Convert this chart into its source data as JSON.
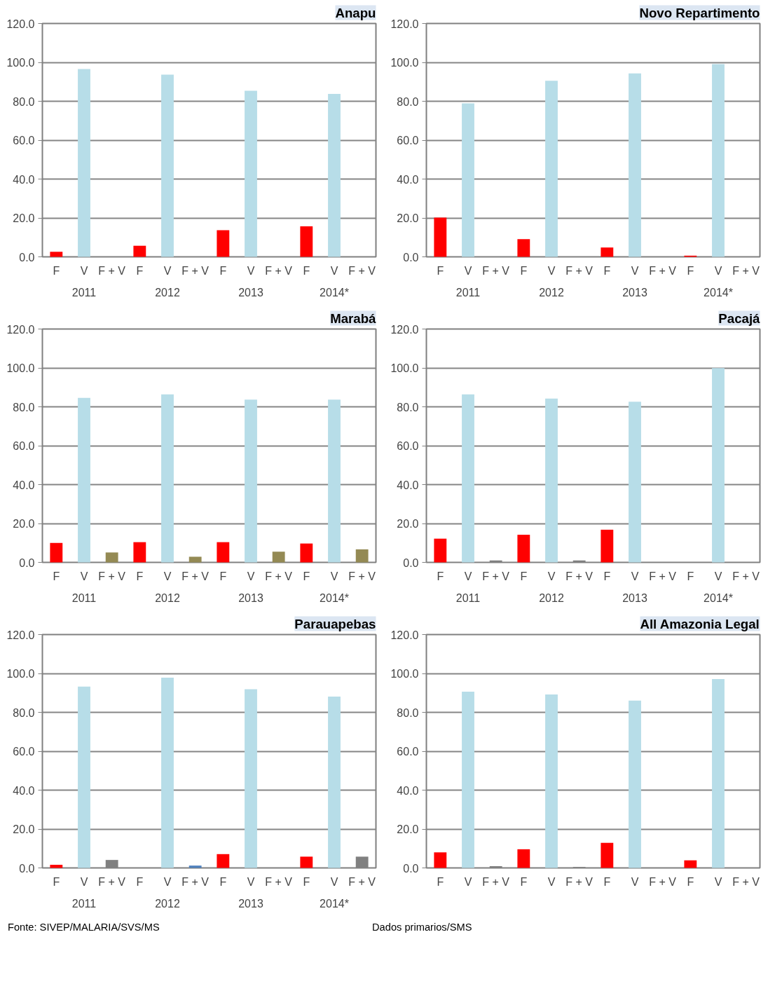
{
  "chart_data": [
    {
      "type": "bar",
      "title": "Anapu",
      "categories": [
        "F",
        "V",
        "F + V",
        "F",
        "V",
        "F + V",
        "F",
        "V",
        "F + V",
        "F",
        "V",
        "F + V"
      ],
      "values": [
        2.6,
        96.6,
        null,
        5.7,
        93.7,
        null,
        13.7,
        85.4,
        null,
        15.7,
        83.8,
        null
      ],
      "colors": [
        "#ff0000",
        "#b7dde8",
        "#808080",
        "#ff0000",
        "#b7dde8",
        "#808080",
        "#ff0000",
        "#b7dde8",
        "#808080",
        "#ff0000",
        "#b7dde8",
        "#808080"
      ],
      "annotations": [
        "2011",
        "2012",
        "2013",
        "2014*"
      ],
      "ylim": [
        0,
        120
      ],
      "yticks": [
        {
          "value": 0,
          "label": "0.0"
        },
        {
          "value": 20,
          "label": "20.0"
        },
        {
          "value": 40,
          "label": "40.0"
        },
        {
          "value": 60,
          "label": "60.0"
        },
        {
          "value": 80,
          "label": "80.0"
        },
        {
          "value": 100,
          "label": "100.0"
        },
        {
          "value": 120,
          "label": "120.0"
        }
      ],
      "grid": "y"
    },
    {
      "type": "bar",
      "title": "Novo Repartimento",
      "categories": [
        "F",
        "V",
        "F + V",
        "F",
        "V",
        "F + V",
        "F",
        "V",
        "F + V",
        "F",
        "V",
        "F + V"
      ],
      "values": [
        20.2,
        78.9,
        null,
        9.1,
        90.5,
        null,
        4.8,
        94.3,
        null,
        0.6,
        99.1,
        null
      ],
      "colors": [
        "#ff0000",
        "#b7dde8",
        "#808080",
        "#ff0000",
        "#b7dde8",
        "#808080",
        "#ff0000",
        "#b7dde8",
        "#808080",
        "#ff0000",
        "#b7dde8",
        "#808080"
      ],
      "annotations": [
        "2011",
        "2012",
        "2013",
        "2014*"
      ],
      "ylim": [
        0,
        120
      ],
      "yticks": [
        {
          "value": 0,
          "label": "0.0"
        },
        {
          "value": 20,
          "label": "20.0"
        },
        {
          "value": 40,
          "label": "40.0"
        },
        {
          "value": 60,
          "label": "60.0"
        },
        {
          "value": 80,
          "label": "80.0"
        },
        {
          "value": 100,
          "label": "100.0"
        },
        {
          "value": 120,
          "label": "120.0"
        }
      ],
      "grid": "y"
    },
    {
      "type": "bar",
      "title": "Marabá",
      "categories": [
        "F",
        "V",
        "F + V",
        "F",
        "V",
        "F + V",
        "F",
        "V",
        "F + V",
        "F",
        "V",
        "F + V"
      ],
      "values": [
        10.0,
        84.6,
        5.1,
        10.4,
        86.4,
        2.9,
        10.4,
        83.7,
        5.5,
        9.7,
        83.7,
        6.7
      ],
      "colors": [
        "#ff0000",
        "#b7dde8",
        "#948a54",
        "#ff0000",
        "#b7dde8",
        "#948a54",
        "#ff0000",
        "#b7dde8",
        "#948a54",
        "#ff0000",
        "#b7dde8",
        "#948a54"
      ],
      "annotations": [
        "2011",
        "2012",
        "2013",
        "2014*"
      ],
      "ylim": [
        0,
        120
      ],
      "yticks": [
        {
          "value": 0,
          "label": "0.0"
        },
        {
          "value": 20,
          "label": "20.0"
        },
        {
          "value": 40,
          "label": "40.0"
        },
        {
          "value": 60,
          "label": "60.0"
        },
        {
          "value": 80,
          "label": "80.0"
        },
        {
          "value": 100,
          "label": "100.0"
        },
        {
          "value": 120,
          "label": "120.0"
        }
      ],
      "grid": "y"
    },
    {
      "type": "bar",
      "title": "Pacajá",
      "categories": [
        "F",
        "V",
        "F + V",
        "F",
        "V",
        "F + V",
        "F",
        "V",
        "F + V",
        "F",
        "V",
        "F + V"
      ],
      "values": [
        12.2,
        86.4,
        1.0,
        14.2,
        84.2,
        1.0,
        16.8,
        82.6,
        null,
        null,
        99.9,
        null
      ],
      "colors": [
        "#ff0000",
        "#b7dde8",
        "#808080",
        "#ff0000",
        "#b7dde8",
        "#808080",
        "#ff0000",
        "#b7dde8",
        "#808080",
        "#ff0000",
        "#b7dde8",
        "#808080"
      ],
      "annotations": [
        "2011",
        "2012",
        "2013",
        "2014*"
      ],
      "ylim": [
        0,
        120
      ],
      "yticks": [
        {
          "value": 0,
          "label": "0.0"
        },
        {
          "value": 20,
          "label": "20.0"
        },
        {
          "value": 40,
          "label": "40.0"
        },
        {
          "value": 60,
          "label": "60.0"
        },
        {
          "value": 80,
          "label": "80.0"
        },
        {
          "value": 100,
          "label": "100.0"
        },
        {
          "value": 120,
          "label": "120.0"
        }
      ],
      "grid": "y"
    },
    {
      "type": "bar",
      "title": "Parauapebas",
      "categories": [
        "F",
        "V",
        "F + V",
        "F",
        "V",
        "F + V",
        "F",
        "V",
        "F + V",
        "F",
        "V",
        "F + V"
      ],
      "values": [
        1.6,
        93.2,
        4.1,
        null,
        97.8,
        1.2,
        7.1,
        91.9,
        null,
        5.8,
        88.1,
        5.8
      ],
      "colors": [
        "#ff0000",
        "#b7dde8",
        "#808080",
        "#ff0000",
        "#b7dde8",
        "#4f81bd",
        "#ff0000",
        "#b7dde8",
        "#808080",
        "#ff0000",
        "#b7dde8",
        "#808080"
      ],
      "annotations": [
        "2011",
        "2012",
        "2013",
        "2014*"
      ],
      "ylim": [
        0,
        120
      ],
      "yticks": [
        {
          "value": 0,
          "label": "0.0"
        },
        {
          "value": 20,
          "label": "20.0"
        },
        {
          "value": 40,
          "label": "40.0"
        },
        {
          "value": 60,
          "label": "60.0"
        },
        {
          "value": 80,
          "label": "80.0"
        },
        {
          "value": 100,
          "label": "100.0"
        },
        {
          "value": 120,
          "label": "120.0"
        }
      ],
      "grid": "y"
    },
    {
      "type": "bar",
      "title": "All Amazonia Legal",
      "categories": [
        "F",
        "V",
        "F + V",
        "F",
        "V",
        "F + V",
        "F",
        "V",
        "F + V",
        "F",
        "V",
        "F + V"
      ],
      "values": [
        8.0,
        90.6,
        0.9,
        9.6,
        89.2,
        0.5,
        12.9,
        86.0,
        null,
        3.9,
        97.1,
        null
      ],
      "colors": [
        "#ff0000",
        "#b7dde8",
        "#808080",
        "#ff0000",
        "#b7dde8",
        "#808080",
        "#ff0000",
        "#b7dde8",
        "#b7dde8",
        "#ff0000",
        "#b7dde8",
        "#b7dde8"
      ],
      "annotations": [
        "Fonte: SIVEP/MALARIA/SVS/MS",
        "Dados primarios/SMS"
      ],
      "ylim": [
        0,
        120
      ],
      "yticks": [
        {
          "value": 0,
          "label": "0.0"
        },
        {
          "value": 20,
          "label": "20.0"
        },
        {
          "value": 40,
          "label": "40.0"
        },
        {
          "value": 60,
          "label": "60.0"
        },
        {
          "value": 80,
          "label": "80.0"
        },
        {
          "value": 100,
          "label": "100.0"
        },
        {
          "value": 120,
          "label": "120.0"
        }
      ],
      "grid": "y"
    }
  ]
}
